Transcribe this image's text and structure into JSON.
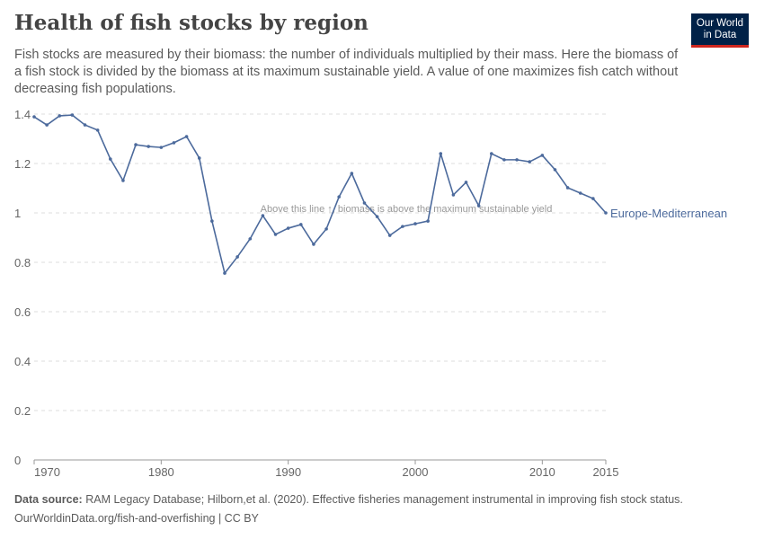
{
  "title": "Health of fish stocks by region",
  "subtitle": "Fish stocks are measured by their biomass: the number of individuals multiplied by their mass. Here the biomass of a fish stock is divided by the biomass at its maximum sustainable yield. A value of one maximizes fish catch without decreasing fish populations.",
  "logo": {
    "line1": "Our World",
    "line2": "in Data",
    "bg": "#002147",
    "accent": "#ce261e"
  },
  "footer": {
    "source_label": "Data source:",
    "source_text": "RAM Legacy Database; Hilborn,et al. (2020). Effective fisheries management instrumental in improving fish stock status.",
    "link": "OurWorldinData.org/fish-and-overfishing | CC BY"
  },
  "chart_data": {
    "type": "line",
    "xlim": [
      1970,
      2015
    ],
    "ylim": [
      0,
      1.4
    ],
    "x_ticks": [
      "1970",
      "1980",
      "1990",
      "2000",
      "2010",
      "2015"
    ],
    "y_ticks": [
      "0",
      "0.2",
      "0.4",
      "0.6",
      "0.8",
      "1",
      "1.2",
      "1.4"
    ],
    "grid": "horizontal dashed",
    "annotation": "Above this line ↑, biomass is above the maximum sustainable yield",
    "series": [
      {
        "name": "Europe-Mediterranean",
        "color": "#4c6a9c",
        "x": [
          1970,
          1971,
          1972,
          1973,
          1974,
          1975,
          1976,
          1977,
          1978,
          1979,
          1980,
          1981,
          1982,
          1983,
          1984,
          1985,
          1986,
          1987,
          1988,
          1989,
          1990,
          1991,
          1992,
          1993,
          1994,
          1995,
          1996,
          1997,
          1998,
          1999,
          2000,
          2001,
          2002,
          2003,
          2004,
          2005,
          2006,
          2007,
          2008,
          2009,
          2010,
          2011,
          2012,
          2013,
          2014,
          2015
        ],
        "values": [
          1.389,
          1.356,
          1.393,
          1.396,
          1.356,
          1.335,
          1.218,
          1.131,
          1.276,
          1.269,
          1.265,
          1.284,
          1.309,
          1.222,
          0.967,
          0.756,
          0.822,
          0.895,
          0.989,
          0.913,
          0.938,
          0.953,
          0.873,
          0.935,
          1.065,
          1.16,
          1.04,
          0.985,
          0.909,
          0.945,
          0.956,
          0.967,
          1.24,
          1.073,
          1.124,
          1.029,
          1.24,
          1.215,
          1.215,
          1.207,
          1.233,
          1.175,
          1.102,
          1.08,
          1.058,
          1.0
        ]
      }
    ]
  }
}
